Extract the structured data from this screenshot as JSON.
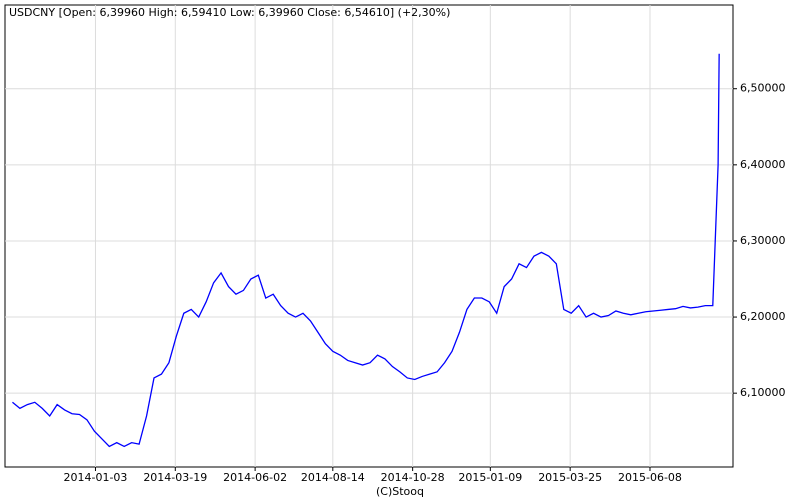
{
  "chart_data": {
    "type": "line",
    "title": "USDCNY [Open: 6,39960  High: 6,59410  Low: 6,39960  Close: 6,54610] (+2,30%)",
    "source": "(C)Stooq",
    "x": [
      "2013-10-17",
      "2013-10-24",
      "2013-10-31",
      "2013-11-07",
      "2013-11-14",
      "2013-11-21",
      "2013-11-28",
      "2013-12-05",
      "2013-12-12",
      "2013-12-19",
      "2013-12-26",
      "2014-01-02",
      "2014-01-09",
      "2014-01-16",
      "2014-01-23",
      "2014-01-30",
      "2014-02-06",
      "2014-02-13",
      "2014-02-20",
      "2014-02-27",
      "2014-03-06",
      "2014-03-13",
      "2014-03-20",
      "2014-03-27",
      "2014-04-03",
      "2014-04-10",
      "2014-04-17",
      "2014-04-24",
      "2014-05-01",
      "2014-05-08",
      "2014-05-15",
      "2014-05-22",
      "2014-05-29",
      "2014-06-05",
      "2014-06-12",
      "2014-06-19",
      "2014-06-26",
      "2014-07-03",
      "2014-07-10",
      "2014-07-17",
      "2014-07-24",
      "2014-07-31",
      "2014-08-07",
      "2014-08-14",
      "2014-08-21",
      "2014-08-28",
      "2014-09-04",
      "2014-09-11",
      "2014-09-18",
      "2014-09-25",
      "2014-10-02",
      "2014-10-09",
      "2014-10-16",
      "2014-10-23",
      "2014-10-30",
      "2014-11-06",
      "2014-11-13",
      "2014-11-20",
      "2014-11-27",
      "2014-12-04",
      "2014-12-11",
      "2014-12-18",
      "2014-12-25",
      "2015-01-01",
      "2015-01-08",
      "2015-01-15",
      "2015-01-22",
      "2015-01-29",
      "2015-02-05",
      "2015-02-12",
      "2015-02-19",
      "2015-02-26",
      "2015-03-05",
      "2015-03-12",
      "2015-03-19",
      "2015-03-26",
      "2015-04-02",
      "2015-04-09",
      "2015-04-16",
      "2015-04-23",
      "2015-04-30",
      "2015-05-07",
      "2015-05-14",
      "2015-05-21",
      "2015-05-28",
      "2015-06-04",
      "2015-06-11",
      "2015-06-18",
      "2015-06-25",
      "2015-07-02",
      "2015-07-09",
      "2015-07-16",
      "2015-07-23",
      "2015-07-30",
      "2015-08-06",
      "2015-08-11",
      "2015-08-12"
    ],
    "series": [
      {
        "name": "USDCNY",
        "color": "#0000ff",
        "values": [
          6.088,
          6.08,
          6.085,
          6.088,
          6.08,
          6.07,
          6.085,
          6.078,
          6.073,
          6.072,
          6.065,
          6.05,
          6.04,
          6.03,
          6.035,
          6.03,
          6.035,
          6.033,
          6.07,
          6.12,
          6.125,
          6.14,
          6.175,
          6.205,
          6.21,
          6.2,
          6.22,
          6.245,
          6.258,
          6.24,
          6.23,
          6.235,
          6.25,
          6.255,
          6.225,
          6.23,
          6.215,
          6.205,
          6.2,
          6.205,
          6.195,
          6.18,
          6.165,
          6.155,
          6.15,
          6.143,
          6.14,
          6.137,
          6.14,
          6.15,
          6.145,
          6.135,
          6.128,
          6.12,
          6.118,
          6.122,
          6.125,
          6.128,
          6.14,
          6.155,
          6.18,
          6.21,
          6.225,
          6.225,
          6.22,
          6.205,
          6.24,
          6.25,
          6.27,
          6.265,
          6.28,
          6.285,
          6.28,
          6.27,
          6.21,
          6.205,
          6.215,
          6.2,
          6.205,
          6.2,
          6.202,
          6.208,
          6.205,
          6.203,
          6.205,
          6.207,
          6.208,
          6.209,
          6.21,
          6.211,
          6.214,
          6.212,
          6.213,
          6.215,
          6.215,
          6.4,
          6.546
        ]
      }
    ],
    "xlim": [
      "2013-10-10",
      "2015-08-25"
    ],
    "xticks": [
      "2014-01-03",
      "2014-03-19",
      "2014-06-02",
      "2014-08-14",
      "2014-10-28",
      "2015-01-09",
      "2015-03-25",
      "2015-06-08"
    ],
    "ylim": [
      6.003,
      6.61
    ],
    "yticks": [
      {
        "value": 6.1,
        "label": "6,10000"
      },
      {
        "value": 6.2,
        "label": "6,20000"
      },
      {
        "value": 6.3,
        "label": "6,30000"
      },
      {
        "value": 6.4,
        "label": "6,40000"
      },
      {
        "value": 6.5,
        "label": "6,50000"
      }
    ],
    "grid": true
  }
}
